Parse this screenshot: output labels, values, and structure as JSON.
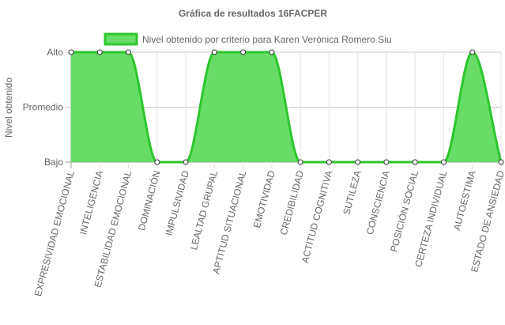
{
  "chart_data": {
    "type": "area",
    "title": "Gráfica de resultados 16FACPER",
    "ylabel": "Nivel obtenido",
    "xlabel": "",
    "y_levels": [
      "Bajo",
      "Promedio",
      "Alto"
    ],
    "categories": [
      "EXPRESIVIDAD EMOCIONAL",
      "INTELIGENCIA",
      "ESTABILIDAD EMOCIONAL",
      "DOMINACIÓN",
      "IMPULSIVIDAD",
      "LEALTAD GRUPAL",
      "APTITUD SITUACIONAL",
      "EMOTIVIDAD",
      "CREDIBILIDAD",
      "ACTITUD COGNITIVA",
      "SUTILEZA",
      "CONSCIENCIA",
      "POSICIÓN SOCIAL",
      "CERTEZA INDIVIDUAL",
      "AUTOESTIMA",
      "ESTADO DE ANSIEDAD"
    ],
    "series": [
      {
        "name": "Nivel obtenido por criterio para Karen Verónica Romero Siu",
        "values": [
          "Alto",
          "Alto",
          "Alto",
          "Bajo",
          "Bajo",
          "Alto",
          "Alto",
          "Alto",
          "Bajo",
          "Bajo",
          "Bajo",
          "Bajo",
          "Bajo",
          "Bajo",
          "Alto",
          "Bajo"
        ],
        "line_color": "#2cc62c",
        "fill_color": "#67dd67"
      }
    ],
    "grid": true,
    "legend_position": "top"
  }
}
